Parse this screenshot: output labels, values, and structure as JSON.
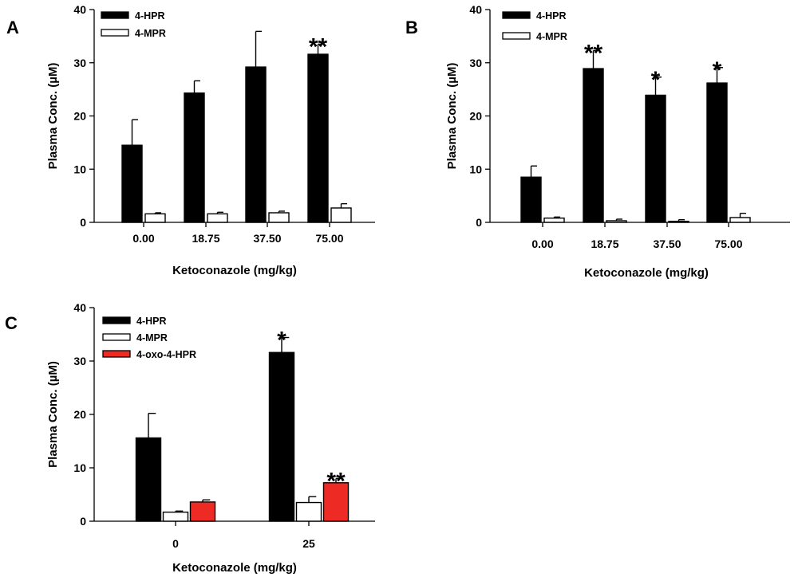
{
  "colors": {
    "hpr": "#000000",
    "mpr": "#ffffff",
    "oxo": "#ee2a24",
    "stroke": "#000000"
  },
  "chart_data": [
    {
      "panel": "A",
      "type": "bar",
      "xlabel": "Ketoconazole (mg/kg)",
      "ylabel": "Plasma Conc. (µM)",
      "ylim": [
        0,
        40
      ],
      "yticks": [
        "0",
        "10",
        "20",
        "30",
        "40"
      ],
      "categories": [
        "0.00",
        "18.75",
        "37.50",
        "75.00"
      ],
      "legend_position": "top-left",
      "series": [
        {
          "name": "4-HPR",
          "color": "#000000",
          "values": [
            14.5,
            24.3,
            29.2,
            31.6
          ],
          "errors": [
            4.8,
            2.3,
            6.7,
            1.9
          ]
        },
        {
          "name": "4-MPR",
          "color": "#ffffff",
          "values": [
            1.6,
            1.6,
            1.8,
            2.7
          ],
          "errors": [
            0.2,
            0.3,
            0.3,
            0.8
          ]
        }
      ],
      "annotations": [
        {
          "label": "**",
          "series": 0,
          "category": 3
        }
      ]
    },
    {
      "panel": "B",
      "type": "bar",
      "xlabel": "Ketoconazole (mg/kg)",
      "ylabel": "Plasma Conc. (µM)",
      "ylim": [
        0,
        40
      ],
      "yticks": [
        "0",
        "10",
        "20",
        "30",
        "40"
      ],
      "categories": [
        "0.00",
        "18.75",
        "37.50",
        "75.00"
      ],
      "legend_position": "top-left",
      "series": [
        {
          "name": "4-HPR",
          "color": "#000000",
          "values": [
            8.5,
            28.9,
            23.9,
            26.2
          ],
          "errors": [
            2.1,
            3.4,
            3.4,
            2.9
          ]
        },
        {
          "name": "4-MPR",
          "color": "#ffffff",
          "values": [
            0.8,
            0.3,
            0.2,
            0.9
          ],
          "errors": [
            0.2,
            0.3,
            0.3,
            0.8
          ]
        }
      ],
      "annotations": [
        {
          "label": "**",
          "series": 0,
          "category": 1
        },
        {
          "label": "*",
          "series": 0,
          "category": 2
        },
        {
          "label": "*",
          "series": 0,
          "category": 3
        }
      ]
    },
    {
      "panel": "C",
      "type": "bar",
      "xlabel": "Ketoconazole (mg/kg)",
      "ylabel": "Plasma Conc. (µM)",
      "ylim": [
        0,
        40
      ],
      "yticks": [
        "0",
        "10",
        "20",
        "30",
        "40"
      ],
      "categories": [
        "0",
        "25"
      ],
      "legend_position": "top-left",
      "series": [
        {
          "name": "4-HPR",
          "color": "#000000",
          "values": [
            15.6,
            31.6
          ],
          "errors": [
            4.6,
            2.8
          ]
        },
        {
          "name": "4-MPR",
          "color": "#ffffff",
          "values": [
            1.7,
            3.5
          ],
          "errors": [
            0.2,
            1.1
          ]
        },
        {
          "name": "4-oxo-4-HPR",
          "color": "#ee2a24",
          "values": [
            3.6,
            7.2
          ],
          "errors": [
            0.4,
            0.8
          ]
        }
      ],
      "annotations": [
        {
          "label": "*",
          "series": 0,
          "category": 1
        },
        {
          "label": "**",
          "series": 2,
          "category": 1
        }
      ]
    }
  ]
}
